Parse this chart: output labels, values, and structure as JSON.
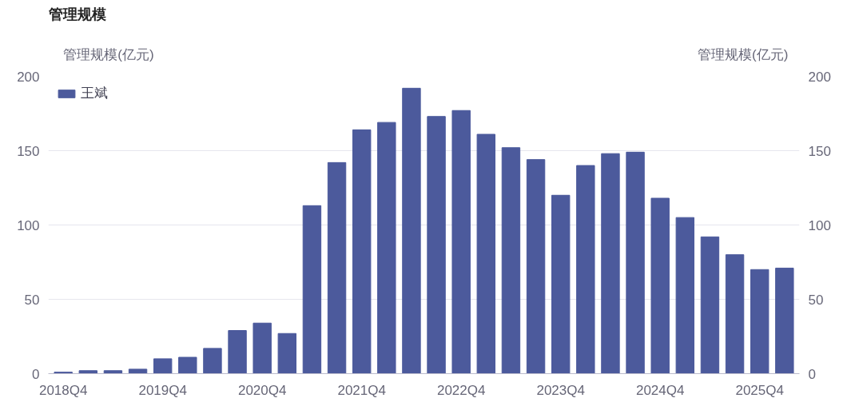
{
  "chart_data": {
    "type": "bar",
    "title": "管理规模",
    "ylabel": "管理规模(亿元)",
    "y2label": "管理规模(亿元)",
    "categories": [
      "2018Q4",
      null,
      null,
      null,
      "2019Q4",
      null,
      null,
      null,
      "2020Q4",
      null,
      null,
      null,
      "2021Q4",
      null,
      null,
      null,
      "2022Q4",
      null,
      null,
      null,
      "2023Q4",
      null,
      null,
      null,
      "2024Q4",
      null,
      null,
      null,
      "2025Q4",
      null
    ],
    "series": [
      {
        "name": "王斌",
        "color": "#4c5a9c",
        "values": [
          1,
          2,
          2,
          3,
          10,
          11,
          17,
          29,
          34,
          27,
          113,
          142,
          164,
          169,
          192,
          173,
          177,
          161,
          152,
          144,
          120,
          140,
          148,
          149,
          118,
          105,
          92,
          80,
          70,
          71
        ]
      }
    ],
    "ylim": [
      0,
      200
    ],
    "yticks": [
      0,
      50,
      100,
      150,
      200
    ],
    "y2lim": [
      0,
      200
    ],
    "y2ticks": [
      0,
      50,
      100,
      150,
      200
    ],
    "grid": "y",
    "legend": "top left"
  }
}
